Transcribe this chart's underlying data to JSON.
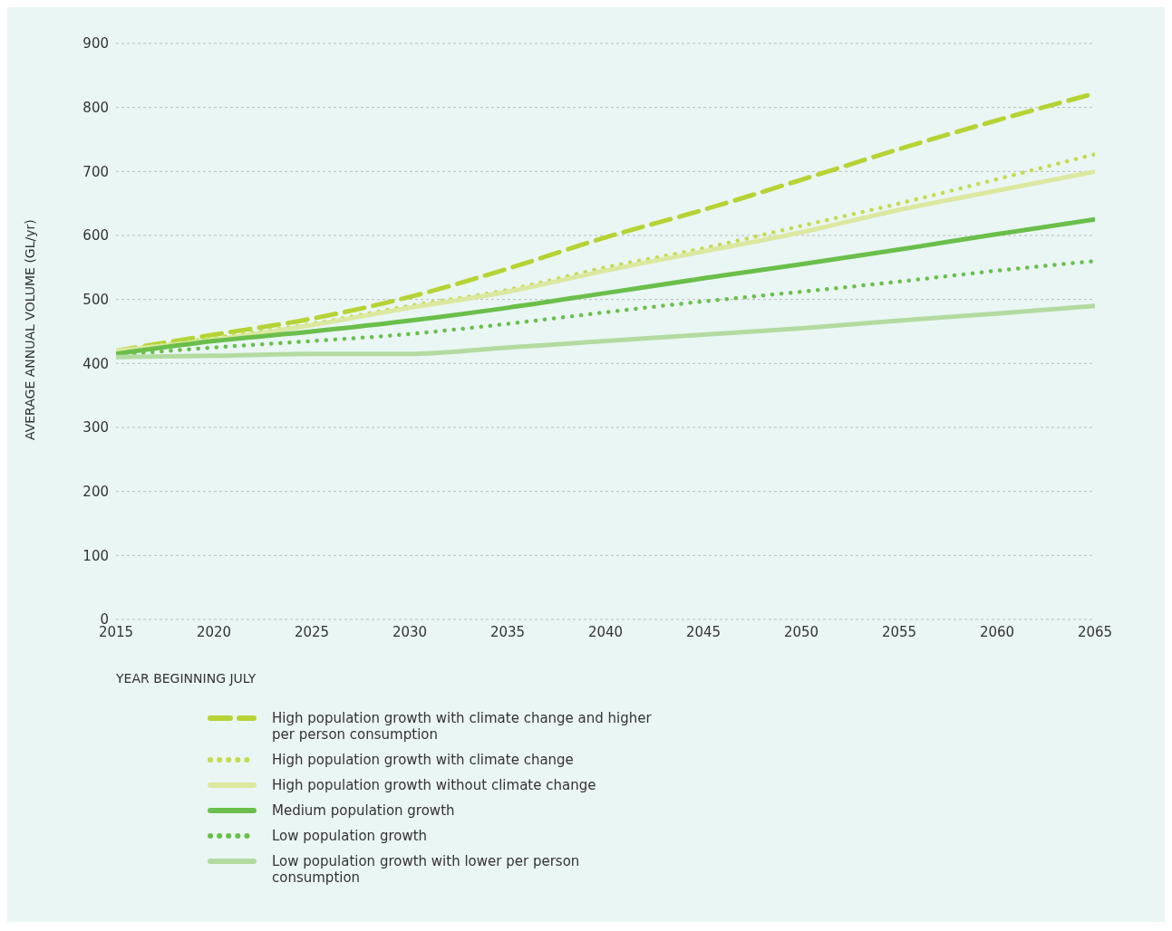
{
  "chart_data": {
    "type": "line",
    "xlabel": "YEAR BEGINNING JULY",
    "ylabel": "AVERAGE ANNUAL VOLUME (GL/yr)",
    "x": [
      2015,
      2020,
      2025,
      2030,
      2035,
      2040,
      2045,
      2050,
      2055,
      2060,
      2065
    ],
    "xlim": [
      2015,
      2065
    ],
    "xticks": [
      2015,
      2020,
      2025,
      2030,
      2035,
      2040,
      2045,
      2050,
      2055,
      2060,
      2065
    ],
    "ylim": [
      0,
      900
    ],
    "yticks": [
      0,
      100,
      200,
      300,
      400,
      500,
      600,
      700,
      800,
      900
    ],
    "grid": "y",
    "legend": "bottom",
    "marker": "none",
    "series": [
      {
        "name": "High population growth with climate change and higher per person consumption",
        "color": "#b5d334",
        "line_style": "dashed",
        "values": [
          420,
          445,
          470,
          504,
          548,
          597,
          640,
          687,
          735,
          780,
          822
        ]
      },
      {
        "name": "High population growth with climate change",
        "color": "#c3dc4f",
        "line_style": "dotted",
        "values": [
          420,
          440,
          462,
          490,
          515,
          550,
          580,
          615,
          650,
          688,
          727
        ]
      },
      {
        "name": "High population growth without climate change",
        "color": "#dbe8a0",
        "line_style": "solid",
        "values": [
          420,
          437,
          460,
          487,
          512,
          545,
          575,
          605,
          640,
          670,
          700
        ]
      },
      {
        "name": "Medium population growth",
        "color": "#6abf4b",
        "line_style": "solid",
        "values": [
          415,
          435,
          450,
          467,
          487,
          510,
          533,
          555,
          578,
          602,
          625
        ]
      },
      {
        "name": "Low population growth",
        "color": "#6abf4b",
        "line_style": "dotted",
        "values": [
          413,
          425,
          435,
          446,
          462,
          480,
          497,
          512,
          528,
          545,
          560
        ]
      },
      {
        "name": "Low population growth with lower per person consumption",
        "color": "#b3dba0",
        "line_style": "solid",
        "values": [
          410,
          412,
          415,
          415,
          425,
          435,
          445,
          455,
          467,
          478,
          490
        ]
      }
    ]
  }
}
